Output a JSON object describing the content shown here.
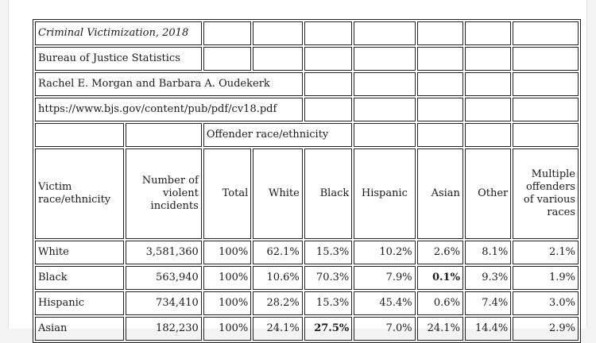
{
  "meta": {
    "title": "Criminal Victimization, 2018",
    "agency": "Bureau of Justice Statistics",
    "authors": "Rachel E. Morgan and Barbara A. Oudekerk",
    "url": "https://www.bjs.gov/content/pub/pdf/cv18.pdf"
  },
  "group_header": "Offender race/ethnicity",
  "columns": {
    "victim": "Victim race/ethnicity",
    "incidents": "Number of violent incidents",
    "total": "Total",
    "white": "White",
    "black": "Black",
    "hispanic": "Hispanic",
    "asian": "Asian",
    "other": "Other",
    "multiple": "Multiple offenders of various races"
  },
  "rows": [
    {
      "victim": "White",
      "incidents": "3,581,360",
      "total": "100%",
      "white": "62.1%",
      "black": "15.3%",
      "hispanic": "10.2%",
      "asian": "2.6%",
      "other": "8.1%",
      "multiple": "2.1%"
    },
    {
      "victim": "Black",
      "incidents": "563,940",
      "total": "100%",
      "white": "10.6%",
      "black": "70.3%",
      "hispanic": "7.9%",
      "asian": "0.1%",
      "other": "9.3%",
      "multiple": "1.9%"
    },
    {
      "victim": "Hispanic",
      "incidents": "734,410",
      "total": "100%",
      "white": "28.2%",
      "black": "15.3%",
      "hispanic": "45.4%",
      "asian": "0.6%",
      "other": "7.4%",
      "multiple": "3.0%"
    },
    {
      "victim": "Asian",
      "incidents": "182,230",
      "total": "100%",
      "white": "24.1%",
      "black": "27.5%",
      "hispanic": "7.0%",
      "asian": "24.1%",
      "other": "14.4%",
      "multiple": "2.9%"
    }
  ]
}
